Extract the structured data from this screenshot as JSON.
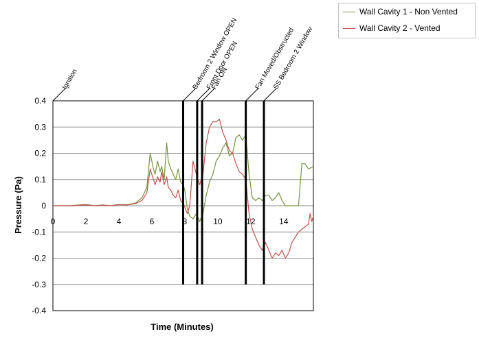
{
  "chart_data": {
    "type": "line",
    "title": "",
    "xlabel": "Time (Minutes)",
    "ylabel": "Pressure (Pa)",
    "xlim": [
      0,
      15.8
    ],
    "ylim": [
      -0.4,
      0.4
    ],
    "x_ticks": [
      "0",
      "2",
      "4",
      "6",
      "8",
      "10",
      "12",
      "14"
    ],
    "y_ticks": [
      "0.4",
      "0.3",
      "0.2",
      "0.1",
      "0",
      "-0.1",
      "-0.2",
      "-0.3",
      "-0.4"
    ],
    "grid": true,
    "legend_position": "top-right",
    "series": [
      {
        "name": "Wall Cavity 1 - Non Vented",
        "color": "#76933c",
        "x": [
          0,
          1,
          2,
          2.5,
          3,
          3.5,
          4,
          4.5,
          5,
          5.4,
          5.7,
          5.9,
          6.1,
          6.2,
          6.35,
          6.5,
          6.6,
          6.75,
          6.9,
          7.0,
          7.15,
          7.3,
          7.45,
          7.6,
          7.75,
          7.9,
          8.0,
          8.15,
          8.3,
          8.5,
          8.7,
          8.9,
          9.1,
          9.3,
          9.5,
          9.7,
          9.9,
          10.1,
          10.3,
          10.5,
          10.7,
          10.9,
          11.1,
          11.3,
          11.5,
          11.7,
          11.9,
          12.1,
          12.3,
          12.5,
          12.7,
          12.9,
          13.1,
          13.3,
          13.5,
          13.7,
          13.9,
          14.1,
          14.3,
          14.5,
          14.7,
          14.9,
          15.1,
          15.3,
          15.5,
          15.8
        ],
        "y": [
          0,
          0,
          0.005,
          0,
          0.003,
          0,
          0.005,
          0.004,
          0.01,
          0.03,
          0.07,
          0.2,
          0.14,
          0.12,
          0.17,
          0.13,
          0.15,
          0.1,
          0.24,
          0.17,
          0.14,
          0.12,
          0.1,
          0.14,
          0.09,
          0.08,
          0.06,
          -0.01,
          -0.04,
          -0.05,
          -0.03,
          -0.06,
          -0.03,
          0.04,
          0.09,
          0.12,
          0.17,
          0.19,
          0.22,
          0.24,
          0.19,
          0.2,
          0.26,
          0.27,
          0.25,
          0.27,
          0.12,
          0.03,
          0.02,
          0.03,
          0.02,
          0.04,
          0.04,
          0.02,
          0.03,
          0.05,
          0.02,
          0.0,
          0.0,
          0.0,
          0.0,
          0.0,
          0.16,
          0.16,
          0.14,
          0.15
        ]
      },
      {
        "name": "Wall Cavity 2 - Vented",
        "color": "#c0504d",
        "x": [
          0,
          1,
          2,
          2.5,
          3,
          3.5,
          4,
          4.5,
          5,
          5.4,
          5.7,
          5.9,
          6.1,
          6.2,
          6.35,
          6.5,
          6.6,
          6.75,
          6.9,
          7.0,
          7.15,
          7.3,
          7.45,
          7.6,
          7.75,
          7.9,
          8.0,
          8.15,
          8.3,
          8.5,
          8.7,
          8.9,
          9.1,
          9.3,
          9.5,
          9.7,
          9.9,
          10.1,
          10.3,
          10.5,
          10.7,
          10.9,
          11.1,
          11.3,
          11.5,
          11.7,
          11.9,
          12.1,
          12.3,
          12.5,
          12.7,
          12.9,
          13.1,
          13.3,
          13.5,
          13.7,
          13.9,
          14.1,
          14.3,
          14.5,
          14.7,
          14.9,
          15.1,
          15.3,
          15.5,
          15.6,
          15.7,
          15.8
        ],
        "y": [
          0,
          0,
          0.003,
          0,
          0.002,
          0,
          0.004,
          0.003,
          0.008,
          0.02,
          0.05,
          0.14,
          0.1,
          0.08,
          0.11,
          0.09,
          0.13,
          0.08,
          0.11,
          0.07,
          0.06,
          0.04,
          0.03,
          0.06,
          0.02,
          0.01,
          -0.005,
          -0.03,
          0.0,
          0.17,
          0.12,
          0.08,
          0.12,
          0.24,
          0.3,
          0.32,
          0.32,
          0.33,
          0.28,
          0.25,
          0.21,
          0.2,
          0.16,
          0.13,
          0.12,
          0.1,
          -0.03,
          -0.09,
          -0.12,
          -0.15,
          -0.17,
          -0.14,
          -0.17,
          -0.2,
          -0.18,
          -0.19,
          -0.17,
          -0.2,
          -0.18,
          -0.14,
          -0.12,
          -0.1,
          -0.09,
          -0.08,
          -0.07,
          -0.03,
          -0.06,
          -0.04
        ]
      }
    ],
    "annotations": [
      {
        "label": "Ignition",
        "x": 0
      },
      {
        "label": "Bedroom 2 Window OPEN",
        "x": 7.9
      },
      {
        "label": "Front Door OPEN",
        "x": 8.75
      },
      {
        "label": "Fan ON",
        "x": 9.05
      },
      {
        "label": "Fan Moved/Obstructed",
        "x": 11.7
      },
      {
        "label": "SS Bedroom 2 Window",
        "x": 12.8
      }
    ]
  }
}
